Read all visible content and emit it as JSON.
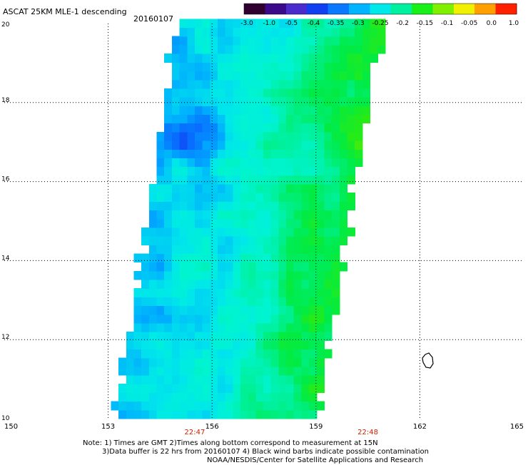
{
  "chart_data": {
    "type": "heatmap",
    "title": "ASCAT 25KM MLE-1 descending",
    "date": "20160107",
    "xlim": [
      150,
      165
    ],
    "ylim": [
      10,
      20
    ],
    "x_ticks": [
      150,
      153,
      156,
      159,
      162,
      165
    ],
    "y_ticks": [
      10,
      12,
      14,
      16,
      18,
      20
    ],
    "grid": true,
    "time_labels": [
      {
        "x": 155.5,
        "label": "22:47"
      },
      {
        "x": 160.5,
        "label": "22:48"
      }
    ],
    "colorbar": {
      "tick_labels": [
        "-3.0",
        "-1.0",
        "-0.5",
        "-0.4",
        "-0.35",
        "-0.3",
        "-0.25",
        "-0.2",
        "-0.15",
        "-0.1",
        "-0.05",
        "0.0",
        "1.0"
      ],
      "colors": [
        "#300030",
        "#3a0a8a",
        "#4a2ccc",
        "#1040f0",
        "#0a78ff",
        "#00b4ff",
        "#00e8e8",
        "#00f0a0",
        "#18f018",
        "#80f000",
        "#f0f000",
        "#ffa000",
        "#ff2000"
      ]
    },
    "swath": {
      "top_edge": {
        "lat": 20.0,
        "lon_west": 155.0,
        "lon_east": 160.8
      },
      "bottom_edge": {
        "lat": 10.0,
        "lon_west": 153.2,
        "lon_east": 158.9
      },
      "typical_values": {
        "west_part": -0.33,
        "center": -0.28,
        "east_part": -0.18
      }
    }
  },
  "notes": {
    "line1": "Note: 1) Times are GMT 2)Times along bottom correspond to measurement at 15N",
    "line2": "3)Data buffer is 22 hrs from 20160107 4) Black wind barbs indicate possible contamination",
    "line3": "NOAA/NESDIS/Center for Satellite Applications and Research"
  }
}
